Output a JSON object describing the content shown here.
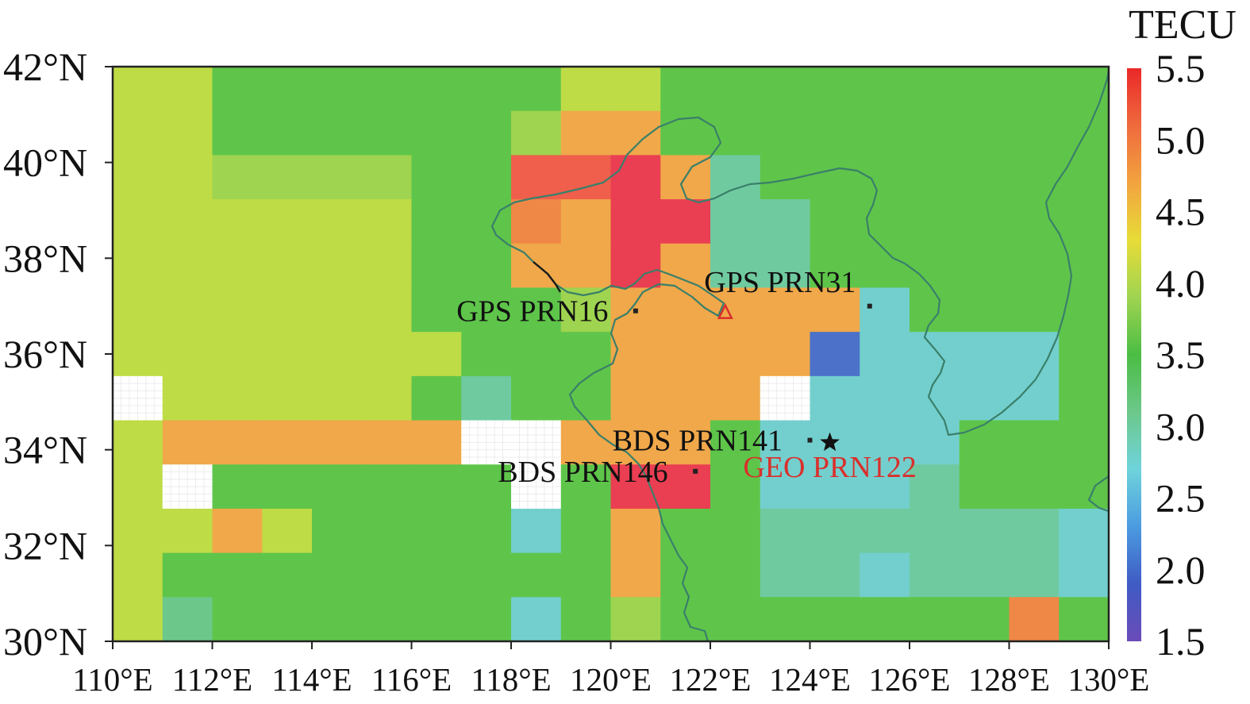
{
  "map": {
    "lon_range": [
      110,
      130
    ],
    "lat_range": [
      30,
      42
    ],
    "grid_step_deg": 1,
    "x_ticks": [
      "110°E",
      "112°E",
      "114°E",
      "116°E",
      "118°E",
      "120°E",
      "122°E",
      "124°E",
      "126°E",
      "128°E",
      "130°E"
    ],
    "y_ticks": [
      "30°N",
      "32°N",
      "34°N",
      "36°N",
      "38°N",
      "40°N",
      "42°N"
    ],
    "palette": {
      "white": "#ffffff",
      "yellow": "#e6e63f",
      "lime": "#bedc46",
      "yellowgreen": "#9fd450",
      "green": "#5ec54a",
      "deepgreen": "#4bbd44",
      "seagreen": "#6cc88a",
      "mint": "#6fcaa0",
      "aqua": "#73cfcd",
      "blue": "#4b72c8",
      "orange": "#f0a84a",
      "darkorange": "#ef8846",
      "redorange": "#ef5f4c",
      "red": "#ea3e52"
    },
    "grid": [
      [
        "lime",
        "lime",
        "green",
        "green",
        "green",
        "green",
        "green",
        "green",
        "green",
        "lime",
        "lime",
        "green",
        "green",
        "green",
        "green",
        "green",
        "green",
        "green",
        "green",
        "green"
      ],
      [
        "lime",
        "lime",
        "green",
        "green",
        "green",
        "green",
        "green",
        "green",
        "yellowgreen",
        "orange",
        "orange",
        "green",
        "green",
        "green",
        "green",
        "green",
        "green",
        "green",
        "green",
        "green"
      ],
      [
        "lime",
        "lime",
        "yellowgreen",
        "yellowgreen",
        "yellowgreen",
        "yellowgreen",
        "green",
        "green",
        "redorange",
        "redorange",
        "red",
        "orange",
        "mint",
        "green",
        "green",
        "green",
        "green",
        "green",
        "green",
        "green"
      ],
      [
        "lime",
        "lime",
        "lime",
        "lime",
        "lime",
        "lime",
        "green",
        "green",
        "darkorange",
        "orange",
        "red",
        "red",
        "mint",
        "mint",
        "green",
        "green",
        "green",
        "green",
        "green",
        "green"
      ],
      [
        "lime",
        "lime",
        "lime",
        "lime",
        "lime",
        "lime",
        "green",
        "green",
        "orange",
        "orange",
        "red",
        "orange",
        "mint",
        "mint",
        "green",
        "green",
        "green",
        "green",
        "green",
        "green"
      ],
      [
        "lime",
        "lime",
        "lime",
        "lime",
        "lime",
        "lime",
        "green",
        "green",
        "green",
        "yellowgreen",
        "orange",
        "orange",
        "orange",
        "orange",
        "orange",
        "aqua",
        "green",
        "green",
        "green",
        "green"
      ],
      [
        "lime",
        "lime",
        "lime",
        "lime",
        "lime",
        "lime",
        "lime",
        "green",
        "green",
        "green",
        "orange",
        "orange",
        "orange",
        "orange",
        "blue",
        "aqua",
        "aqua",
        "aqua",
        "aqua",
        "green"
      ],
      [
        "white",
        "lime",
        "lime",
        "lime",
        "lime",
        "lime",
        "green",
        "mint",
        "green",
        "green",
        "orange",
        "orange",
        "orange",
        "white",
        "aqua",
        "aqua",
        "aqua",
        "aqua",
        "aqua",
        "green"
      ],
      [
        "lime",
        "orange",
        "orange",
        "orange",
        "orange",
        "orange",
        "orange",
        "white",
        "white",
        "orange",
        "orange",
        "orange",
        "green",
        "aqua",
        "aqua",
        "aqua",
        "aqua",
        "green",
        "green",
        "green"
      ],
      [
        "lime",
        "white",
        "green",
        "green",
        "green",
        "green",
        "green",
        "green",
        "white",
        "green",
        "red",
        "red",
        "green",
        "aqua",
        "aqua",
        "aqua",
        "mint",
        "green",
        "green",
        "green"
      ],
      [
        "lime",
        "lime",
        "orange",
        "lime",
        "green",
        "green",
        "green",
        "green",
        "aqua",
        "green",
        "orange",
        "green",
        "green",
        "mint",
        "mint",
        "mint",
        "mint",
        "mint",
        "mint",
        "aqua"
      ],
      [
        "lime",
        "green",
        "green",
        "green",
        "green",
        "green",
        "green",
        "green",
        "green",
        "green",
        "orange",
        "green",
        "green",
        "mint",
        "mint",
        "aqua",
        "mint",
        "mint",
        "mint",
        "aqua"
      ],
      [
        "lime",
        "seagreen",
        "green",
        "green",
        "green",
        "green",
        "green",
        "green",
        "aqua",
        "green",
        "yellowgreen",
        "green",
        "green",
        "green",
        "green",
        "green",
        "green",
        "green",
        "darkorange",
        "green"
      ]
    ],
    "grid_rows_note_top_first": true,
    "coastline": [
      [
        110.0,
        -1
      ]
    ]
  },
  "points": [
    {
      "name": "GPS PRN16",
      "lon": 120.5,
      "lat": 36.9,
      "color": "#222222",
      "label_color": "#111111",
      "label_anchor": "end",
      "dx": -0.55,
      "dy": 0.0
    },
    {
      "name": "GPS PRN31",
      "lon": 125.2,
      "lat": 37.0,
      "color": "#222222",
      "label_color": "#111111",
      "label_anchor": "middle",
      "dx": -1.8,
      "dy": 0.55
    },
    {
      "name": "BDS PRN141",
      "lon": 124.0,
      "lat": 34.2,
      "color": "#222222",
      "label_color": "#111111",
      "label_anchor": "end",
      "dx": -0.55,
      "dy": 0.0
    },
    {
      "name": "BDS PRN146",
      "lon": 121.7,
      "lat": 33.55,
      "color": "#222222",
      "label_color": "#111111",
      "label_anchor": "end",
      "dx": -0.55,
      "dy": 0.0
    },
    {
      "name": "GEO PRN122",
      "lon": 124.4,
      "lat": 34.15,
      "color": "#111111",
      "label_color": "#d9302c",
      "label_anchor": "middle",
      "dx": 0.0,
      "dy": -0.55,
      "marker": "star"
    }
  ],
  "station_marker": {
    "lon": 122.3,
    "lat": 36.85,
    "color": "#d9302c"
  },
  "colorbar": {
    "title": "TECU",
    "min": 1.5,
    "max": 5.5,
    "ticks": [
      "5.5",
      "5.0",
      "4.5",
      "4.0",
      "3.5",
      "3.0",
      "2.5",
      "2.0",
      "1.5"
    ],
    "stops": [
      "#ea2828",
      "#ef6a3d",
      "#f2a33f",
      "#e7dc38",
      "#9fd450",
      "#4bbd44",
      "#6cc88a",
      "#6fd3dc",
      "#4b9be0",
      "#3f5bc4",
      "#6b4bb8"
    ]
  }
}
